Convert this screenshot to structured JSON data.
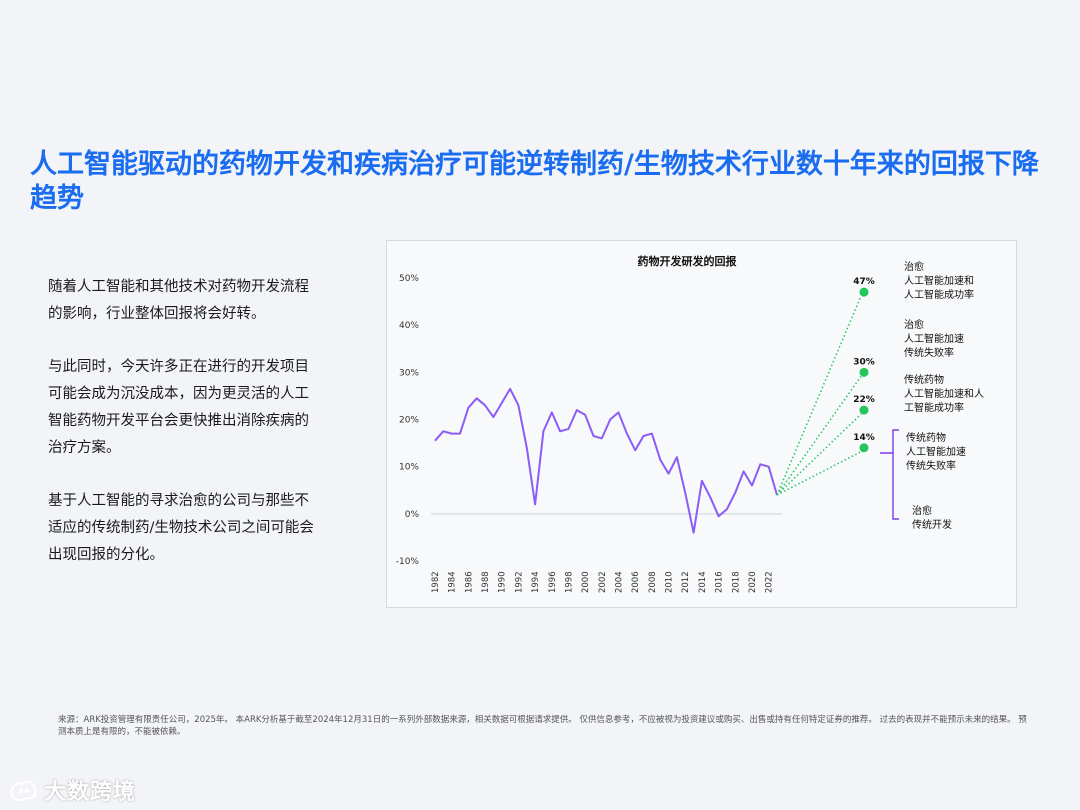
{
  "title": "人工智能驱动的药物开发和疾病治疗可能逆转制药/生物技术行业数十年来的回报下降趋势",
  "paragraphs": [
    "随着人工智能和其他技术对药物开发流程的影响，行业整体回报将会好转。",
    "与此同时，今天许多正在进行的开发项目可能会成为沉没成本，因为更灵活的人工智能药物开发平台会更快推出消除疾病的治疗方案。",
    "基于人工智能的寻求治愈的公司与那些不适应的传统制药/生物技术公司之间可能会出现回报的分化。"
  ],
  "footnote": "来源：ARK投资管理有限责任公司，2025年。 本ARK分析基于截至2024年12月31日的一系列外部数据来源，相关数据可根据请求提供。 仅供信息参考，不应被视为投资建议或购买、出售或持有任何特定证券的推荐。 过去的表现并不能预示未来的结果。 预测本质上是有限的，不能被依赖。",
  "logo_text": "大数跨境",
  "colors": {
    "title": "#1a6cf0",
    "line": "#8b5cf6",
    "projection": "#22c55e",
    "bracket": "#7c3aed"
  },
  "chart_data": {
    "type": "line",
    "title": "药物开发研发的回报",
    "ylim": [
      -10,
      50
    ],
    "y_ticks": [
      "50%",
      "40%",
      "30%",
      "20%",
      "10%",
      "0%",
      "-10%"
    ],
    "y_tick_values": [
      50,
      40,
      30,
      20,
      10,
      0,
      -10
    ],
    "x_tick_labels": [
      "1982",
      "1984",
      "1986",
      "1988",
      "1990",
      "1992",
      "1994",
      "1996",
      "1998",
      "2000",
      "2002",
      "2004",
      "2006",
      "2008",
      "2010",
      "2012",
      "2014",
      "2016",
      "2018",
      "2020",
      "2022"
    ],
    "x": [
      1982,
      1983,
      1984,
      1985,
      1986,
      1987,
      1988,
      1989,
      1990,
      1991,
      1992,
      1993,
      1994,
      1995,
      1996,
      1997,
      1998,
      1999,
      2000,
      2001,
      2002,
      2003,
      2004,
      2005,
      2006,
      2007,
      2008,
      2009,
      2010,
      2011,
      2012,
      2013,
      2014,
      2015,
      2016,
      2017,
      2018,
      2019,
      2020,
      2021,
      2022,
      2023
    ],
    "series": [
      {
        "values": [
          15.5,
          17.5,
          17,
          17,
          22.5,
          24.5,
          23,
          20.5,
          23.5,
          26.5,
          23,
          14,
          2,
          17.5,
          21.5,
          17.5,
          18,
          22,
          21,
          16.5,
          16,
          20,
          21.5,
          17,
          13.5,
          16.5,
          17,
          11.5,
          8.5,
          12,
          4.5,
          -4,
          7,
          3.5,
          -0.5,
          1,
          4.5,
          9,
          6,
          10.5,
          10,
          4
        ]
      }
    ],
    "projections": [
      {
        "value": 47,
        "label": "47%",
        "text": [
          "治愈",
          "人工智能加速和",
          "人工智能成功率"
        ]
      },
      {
        "value": 30,
        "label": "30%",
        "text": [
          "治愈",
          "人工智能加速",
          "传统失败率"
        ]
      },
      {
        "value": 22,
        "label": "22%",
        "text": [
          "传统药物",
          "人工智能加速和人",
          "工智能成功率"
        ]
      },
      {
        "value": 14,
        "label": "14%",
        "text": [
          "传统药物",
          "人工智能加速",
          "传统失败率"
        ]
      }
    ],
    "bracket_note": [
      "治愈",
      "传统开发"
    ]
  }
}
